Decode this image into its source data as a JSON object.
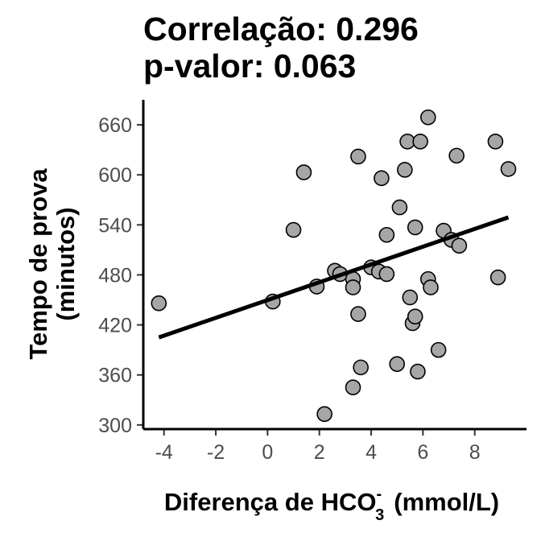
{
  "chart_data": {
    "type": "scatter",
    "title_line1": "Correlação: 0.296",
    "title_line2": "p-valor: 0.063",
    "xlabel": {
      "main": "Diferença de HCO",
      "superscript": "-",
      "subscript": "3",
      "unit": "(mmol/L)"
    },
    "ylabel_line1": "Tempo de prova",
    "ylabel_line2": "(minutos)",
    "xlim": [
      -4.8,
      10.0
    ],
    "ylim": [
      295,
      690
    ],
    "x_ticks": [
      -4,
      -2,
      0,
      2,
      4,
      6,
      8
    ],
    "y_ticks": [
      300,
      360,
      420,
      480,
      540,
      600,
      660
    ],
    "grid": false,
    "point_color": "#a6a6a6",
    "point_edge": "#000000",
    "line_color": "#000000",
    "regression_line": {
      "x": [
        -4.2,
        9.3
      ],
      "y": [
        405,
        549
      ]
    },
    "points": [
      {
        "x": -4.2,
        "y": 446
      },
      {
        "x": 0.2,
        "y": 448
      },
      {
        "x": 1.0,
        "y": 534
      },
      {
        "x": 1.4,
        "y": 603
      },
      {
        "x": 1.9,
        "y": 466
      },
      {
        "x": 2.2,
        "y": 313
      },
      {
        "x": 2.6,
        "y": 485
      },
      {
        "x": 2.8,
        "y": 481
      },
      {
        "x": 3.3,
        "y": 475
      },
      {
        "x": 3.3,
        "y": 465
      },
      {
        "x": 3.3,
        "y": 345
      },
      {
        "x": 3.5,
        "y": 622
      },
      {
        "x": 3.5,
        "y": 433
      },
      {
        "x": 3.6,
        "y": 369
      },
      {
        "x": 4.0,
        "y": 489
      },
      {
        "x": 4.3,
        "y": 484
      },
      {
        "x": 4.4,
        "y": 596
      },
      {
        "x": 4.6,
        "y": 528
      },
      {
        "x": 4.6,
        "y": 481
      },
      {
        "x": 5.0,
        "y": 373
      },
      {
        "x": 5.1,
        "y": 561
      },
      {
        "x": 5.3,
        "y": 606
      },
      {
        "x": 5.4,
        "y": 640
      },
      {
        "x": 5.5,
        "y": 453
      },
      {
        "x": 5.6,
        "y": 422
      },
      {
        "x": 5.7,
        "y": 430
      },
      {
        "x": 5.7,
        "y": 537
      },
      {
        "x": 5.8,
        "y": 364
      },
      {
        "x": 5.9,
        "y": 640
      },
      {
        "x": 6.2,
        "y": 669
      },
      {
        "x": 6.2,
        "y": 475
      },
      {
        "x": 6.3,
        "y": 465
      },
      {
        "x": 6.6,
        "y": 390
      },
      {
        "x": 6.8,
        "y": 533
      },
      {
        "x": 7.1,
        "y": 522
      },
      {
        "x": 7.3,
        "y": 623
      },
      {
        "x": 7.4,
        "y": 515
      },
      {
        "x": 8.8,
        "y": 640
      },
      {
        "x": 8.9,
        "y": 477
      },
      {
        "x": 9.3,
        "y": 607
      }
    ]
  }
}
